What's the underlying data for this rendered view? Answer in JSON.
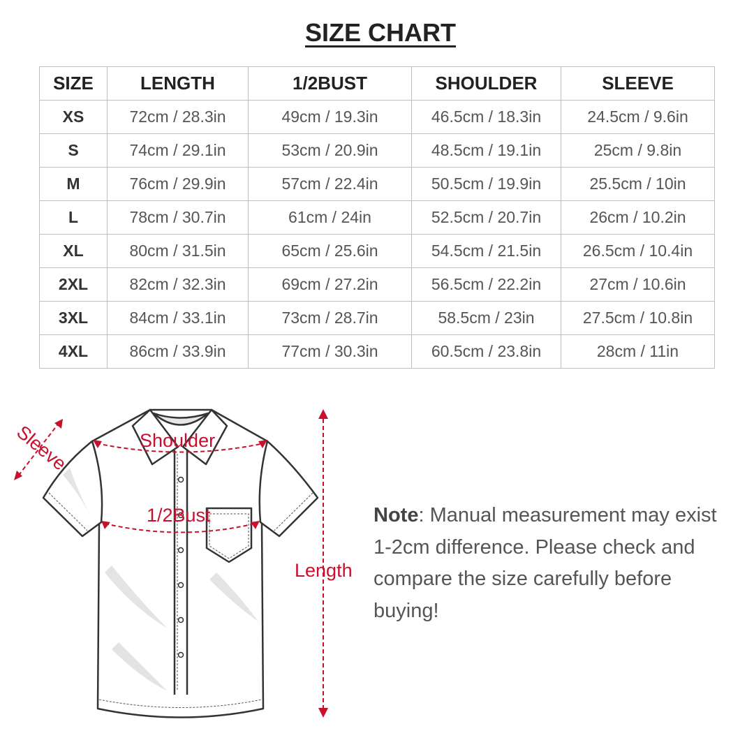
{
  "title": "SIZE CHART",
  "table": {
    "headers": [
      "SIZE",
      "LENGTH",
      "1/2BUST",
      "SHOULDER",
      "SLEEVE"
    ],
    "rows": [
      [
        "XS",
        "72cm / 28.3in",
        "49cm / 19.3in",
        "46.5cm / 18.3in",
        "24.5cm / 9.6in"
      ],
      [
        "S",
        "74cm / 29.1in",
        "53cm / 20.9in",
        "48.5cm / 19.1in",
        "25cm / 9.8in"
      ],
      [
        "M",
        "76cm / 29.9in",
        "57cm / 22.4in",
        "50.5cm / 19.9in",
        "25.5cm / 10in"
      ],
      [
        "L",
        "78cm / 30.7in",
        "61cm / 24in",
        "52.5cm / 20.7in",
        "26cm / 10.2in"
      ],
      [
        "XL",
        "80cm / 31.5in",
        "65cm / 25.6in",
        "54.5cm / 21.5in",
        "26.5cm / 10.4in"
      ],
      [
        "2XL",
        "82cm / 32.3in",
        "69cm / 27.2in",
        "56.5cm / 22.2in",
        "27cm / 10.6in"
      ],
      [
        "3XL",
        "84cm / 33.1in",
        "73cm / 28.7in",
        "58.5cm / 23in",
        "27.5cm / 10.8in"
      ],
      [
        "4XL",
        "86cm / 33.9in",
        "77cm / 30.3in",
        "60.5cm / 23.8in",
        "28cm / 11in"
      ]
    ]
  },
  "diagram": {
    "labels": {
      "sleeve": "Sleeve",
      "shoulder": "Shoulder",
      "bust": "1/2Bust",
      "length": "Length"
    },
    "accent_color": "#c8102e"
  },
  "note": {
    "label": "Note",
    "text": ": Manual measurement may exist 1-2cm difference. Please check and compare the size carefully before buying!"
  }
}
